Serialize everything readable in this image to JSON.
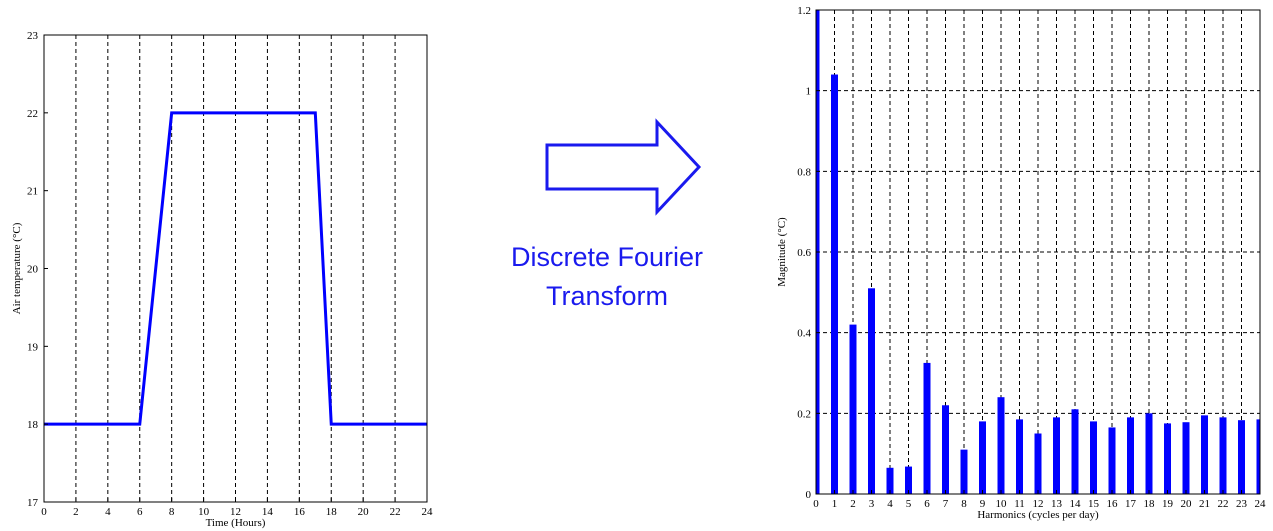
{
  "annotation": {
    "line1": "Discrete Fourier",
    "line2": "Transform",
    "color": "#1a1aee",
    "arrow_icon": "right-arrow-icon"
  },
  "chart_data": [
    {
      "type": "line",
      "title": "",
      "xlabel": "Time (Hours)",
      "ylabel": "Air temperature (°C)",
      "xlim": [
        0,
        24
      ],
      "ylim": [
        17,
        23
      ],
      "xticks": [
        0,
        2,
        4,
        6,
        8,
        10,
        12,
        14,
        16,
        18,
        20,
        22,
        24
      ],
      "yticks": [
        17,
        18,
        19,
        20,
        21,
        22,
        23
      ],
      "grid": "vertical-dashed",
      "line_color": "#0000ff",
      "series": [
        {
          "x": [
            0,
            6,
            8,
            17,
            18,
            24
          ],
          "y": [
            18,
            18,
            22,
            22,
            18,
            18
          ]
        }
      ]
    },
    {
      "type": "bar",
      "title": "",
      "xlabel": "Harmonics (cycles per day)",
      "ylabel": "Magnitude (°C)",
      "xlim": [
        0,
        24
      ],
      "ylim": [
        0,
        1.2
      ],
      "xticks": [
        0,
        1,
        2,
        3,
        4,
        5,
        6,
        7,
        8,
        9,
        10,
        11,
        12,
        13,
        14,
        15,
        16,
        17,
        18,
        19,
        20,
        21,
        22,
        23,
        24
      ],
      "yticks": [
        0,
        0.2,
        0.4,
        0.6,
        0.8,
        1,
        1.2
      ],
      "grid": "dashed",
      "bar_color": "#0000ff",
      "categories": [
        0,
        1,
        2,
        3,
        4,
        5,
        6,
        7,
        8,
        9,
        10,
        11,
        12,
        13,
        14,
        15,
        16,
        17,
        18,
        19,
        20,
        21,
        22,
        23,
        24
      ],
      "values": [
        1.2,
        1.04,
        0.42,
        0.51,
        0.065,
        0.068,
        0.325,
        0.22,
        0.11,
        0.18,
        0.24,
        0.185,
        0.15,
        0.19,
        0.21,
        0.18,
        0.165,
        0.19,
        0.2,
        0.175,
        0.178,
        0.195,
        0.19,
        0.183,
        0.185
      ]
    }
  ]
}
